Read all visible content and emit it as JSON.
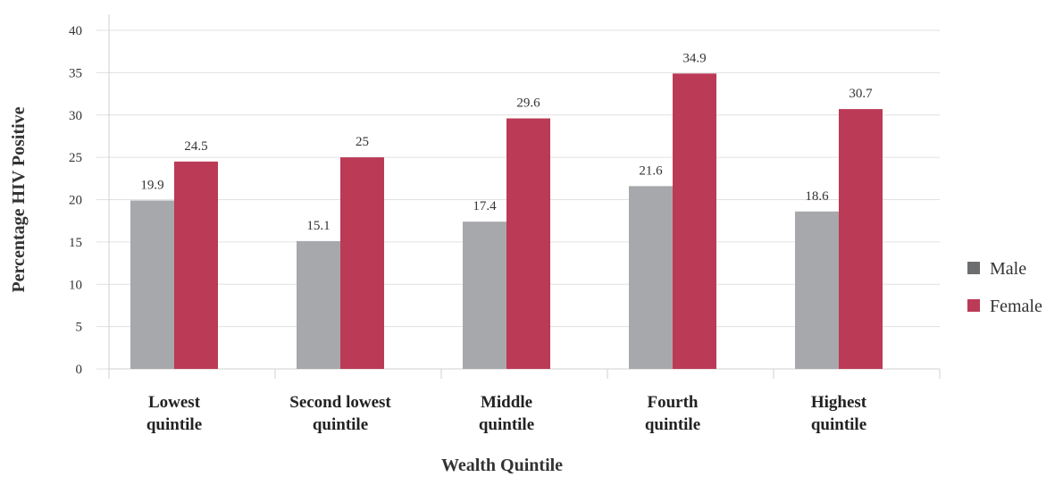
{
  "chart_data": {
    "type": "bar",
    "xlabel": "Wealth Quintile",
    "ylabel": "Percentage HIV Positive",
    "ylim": [
      0,
      40
    ],
    "yticks": [
      0,
      5,
      10,
      15,
      20,
      25,
      30,
      35,
      40
    ],
    "grid": true,
    "legend_position": "right",
    "categories": [
      [
        "Lowest",
        "quintile"
      ],
      [
        "Second lowest",
        "quintile"
      ],
      [
        "Middle",
        "quintile"
      ],
      [
        "Fourth",
        "quintile"
      ],
      [
        "Highest",
        "quintile"
      ]
    ],
    "series": [
      {
        "name": "Male",
        "color": "#a7a8ab",
        "values": [
          19.9,
          15.1,
          17.4,
          21.6,
          18.6
        ]
      },
      {
        "name": "Female",
        "color": "#bb3a55",
        "values": [
          24.5,
          25,
          29.6,
          34.9,
          30.7
        ]
      }
    ],
    "legend_swatch_colors": [
      "#6d6e70",
      "#bb3a55"
    ]
  }
}
